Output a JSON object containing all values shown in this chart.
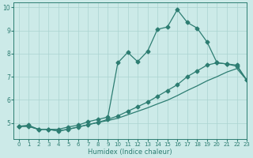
{
  "xlabel": "Humidex (Indice chaleur)",
  "ylabel": "",
  "bg_color": "#cceae8",
  "grid_color": "#aad4d0",
  "line_color": "#2d7d72",
  "xlim": [
    -0.5,
    23
  ],
  "ylim": [
    4.3,
    10.2
  ],
  "yticks": [
    5,
    6,
    7,
    8,
    9,
    10
  ],
  "xticks": [
    0,
    1,
    2,
    3,
    4,
    5,
    6,
    7,
    8,
    9,
    10,
    11,
    12,
    13,
    14,
    15,
    16,
    17,
    18,
    19,
    20,
    21,
    22,
    23
  ],
  "series": [
    {
      "x": [
        0,
        1,
        2,
        3,
        4,
        5,
        6,
        7,
        8,
        9,
        10,
        11,
        12,
        13,
        14,
        15,
        16,
        17,
        18,
        19,
        20,
        21,
        22,
        23
      ],
      "y": [
        4.85,
        4.9,
        4.72,
        4.72,
        4.72,
        4.82,
        4.9,
        5.05,
        5.15,
        5.25,
        7.6,
        8.05,
        7.65,
        8.1,
        9.05,
        9.15,
        9.9,
        9.35,
        9.1,
        8.5,
        7.6,
        7.55,
        7.5,
        6.85
      ],
      "marker": "D",
      "markersize": 2.5,
      "linewidth": 0.9
    },
    {
      "x": [
        0,
        1,
        2,
        3,
        4,
        5,
        6,
        7,
        8,
        9,
        10,
        11,
        12,
        13,
        14,
        15,
        16,
        17,
        18,
        19,
        20,
        21,
        22,
        23
      ],
      "y": [
        4.85,
        4.85,
        4.72,
        4.72,
        4.65,
        4.72,
        4.82,
        4.92,
        5.02,
        5.15,
        5.3,
        5.5,
        5.7,
        5.9,
        6.15,
        6.4,
        6.65,
        7.0,
        7.25,
        7.5,
        7.6,
        7.55,
        7.45,
        6.85
      ],
      "marker": "D",
      "markersize": 2.5,
      "linewidth": 0.9
    },
    {
      "x": [
        0,
        1,
        2,
        3,
        4,
        5,
        6,
        7,
        8,
        9,
        10,
        11,
        12,
        13,
        14,
        15,
        16,
        17,
        18,
        19,
        20,
        21,
        22,
        23
      ],
      "y": [
        4.85,
        4.85,
        4.72,
        4.72,
        4.65,
        4.72,
        4.82,
        4.92,
        5.02,
        5.1,
        5.2,
        5.35,
        5.5,
        5.65,
        5.82,
        5.98,
        6.18,
        6.4,
        6.6,
        6.82,
        7.0,
        7.2,
        7.35,
        6.85
      ],
      "marker": null,
      "markersize": 0,
      "linewidth": 0.9
    }
  ]
}
